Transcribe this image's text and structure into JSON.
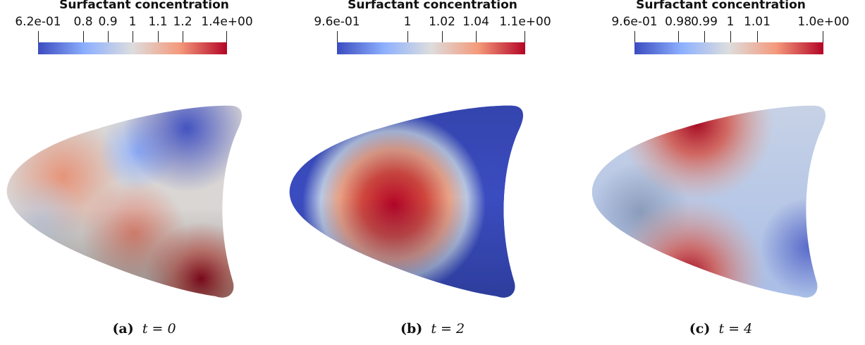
{
  "colorbar_title": "Surfactant concentration",
  "panels": [
    {
      "id": "a",
      "tick_labels": [
        "6.2e-01",
        "0.8",
        "0.9",
        "1",
        "1.1",
        "1.2",
        "1.4e+00"
      ],
      "caption_label": "(a)",
      "caption_expr": "t = 0"
    },
    {
      "id": "b",
      "tick_labels": [
        "9.6e-01",
        "1",
        "1.02",
        "1.04",
        "1.1e+00"
      ],
      "caption_label": "(b)",
      "caption_expr": "t = 2"
    },
    {
      "id": "c",
      "tick_labels": [
        "9.6e-01",
        "0.98",
        "0.99",
        "1",
        "1.01",
        "1.0e+00"
      ],
      "caption_label": "(c)",
      "caption_expr": "t = 4"
    }
  ],
  "colormap": [
    "#3b4cc0",
    "#8db0fe",
    "#dddddd",
    "#f49a7b",
    "#b40426"
  ]
}
